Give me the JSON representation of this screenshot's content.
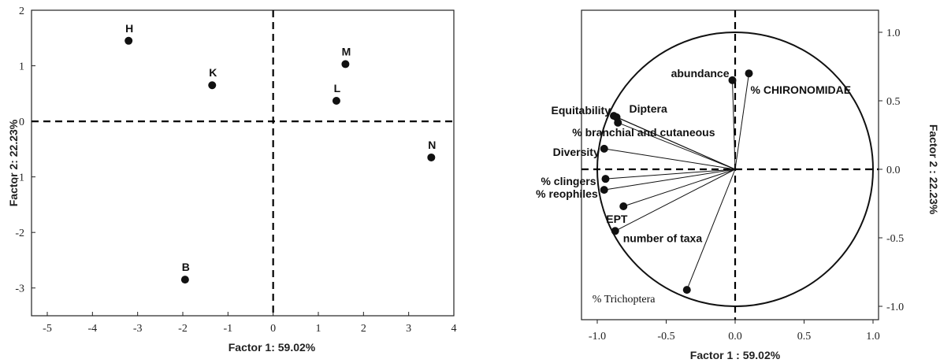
{
  "chart_data": [
    {
      "type": "scatter",
      "title": "",
      "xlabel": "Factor 1: 59.02%",
      "ylabel": "Factor 2: 22.23%",
      "xlim": [
        -5,
        4
      ],
      "ylim": [
        -3.5,
        2
      ],
      "x_ticks": [
        "-5",
        "-4",
        "-3",
        "-2",
        "-1",
        "0",
        "1",
        "2",
        "3",
        "4"
      ],
      "y_ticks": [
        "2",
        "1",
        "0",
        "-1",
        "-2",
        "-3"
      ],
      "grid": false,
      "reference_lines": {
        "x": 0,
        "y": 0
      },
      "points": [
        {
          "label": "H",
          "x": -3.2,
          "y": 1.45
        },
        {
          "label": "K",
          "x": -1.35,
          "y": 0.65
        },
        {
          "label": "M",
          "x": 1.6,
          "y": 1.03
        },
        {
          "label": "L",
          "x": 1.4,
          "y": 0.37
        },
        {
          "label": "N",
          "x": 3.5,
          "y": -0.65
        },
        {
          "label": "B",
          "x": -1.95,
          "y": -2.85
        }
      ]
    },
    {
      "type": "scatter",
      "subtype": "correlation circle",
      "title": "",
      "xlabel": "Factor 1 : 59.02%",
      "ylabel": "Factor 2 : 22.23%",
      "xlim": [
        -1.15,
        1.1
      ],
      "ylim": [
        -1.1,
        1.1
      ],
      "x_ticks": [
        "-1.0",
        "-0.5",
        "0.0",
        "0.5",
        "1.0"
      ],
      "y_ticks": [
        "1.0",
        "0.5",
        "0.0",
        "-0.5",
        "-1.0"
      ],
      "y_axis_side": "right",
      "grid": false,
      "unit_circle": true,
      "reference_lines": {
        "x": 0,
        "y": 0
      },
      "vectors": [
        {
          "label": "abundance",
          "x": -0.02,
          "y": 0.65
        },
        {
          "label": "% CHIRONOMIDAE",
          "x": 0.1,
          "y": 0.7
        },
        {
          "label": "Diptera",
          "x": -0.86,
          "y": 0.38
        },
        {
          "label": "Equitability",
          "x": -0.88,
          "y": 0.39
        },
        {
          "label": "% branchial and cutaneous",
          "x": -0.85,
          "y": 0.34
        },
        {
          "label": "Diversity",
          "x": -0.95,
          "y": 0.15
        },
        {
          "label": "% clingers",
          "x": -0.94,
          "y": -0.07
        },
        {
          "label": "% reophiles",
          "x": -0.95,
          "y": -0.15
        },
        {
          "label": "EPT",
          "x": -0.81,
          "y": -0.27
        },
        {
          "label": "number of taxa",
          "x": -0.87,
          "y": -0.45
        },
        {
          "label": "% Trichoptera",
          "x": -0.35,
          "y": -0.88
        }
      ]
    }
  ]
}
